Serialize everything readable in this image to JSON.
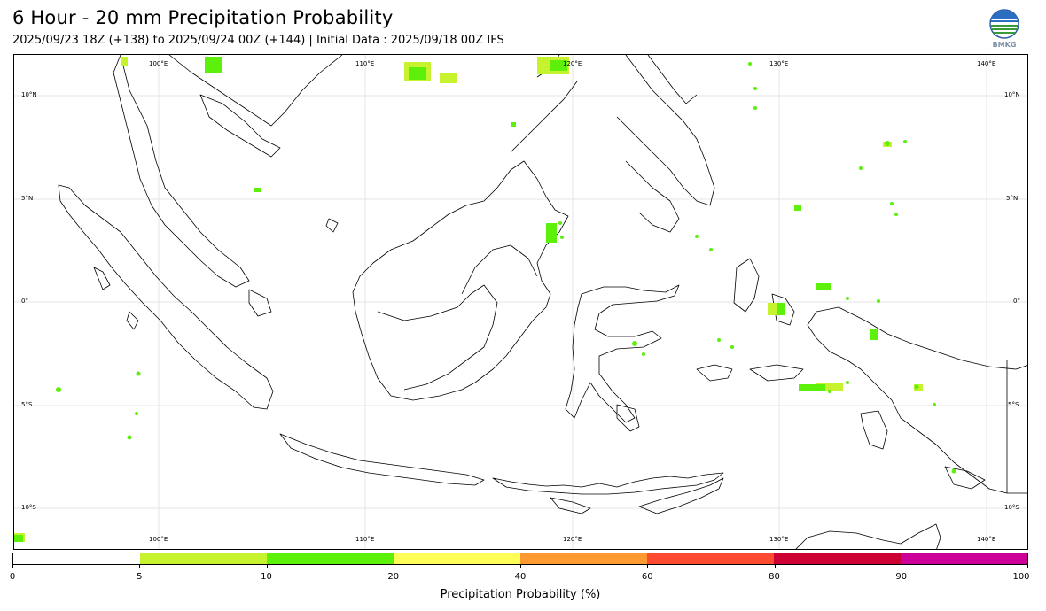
{
  "title": "6 Hour - 20 mm Precipitation Probability",
  "subtitle": "2025/09/23 18Z (+138) to 2025/09/24 00Z (+144) | Initial Data : 2025/09/18 00Z IFS",
  "logo": {
    "text": "BMKG",
    "icon": "bmkg-logo"
  },
  "map": {
    "lon_ticks": [
      "100°E",
      "110°E",
      "120°E",
      "130°E",
      "140°E"
    ],
    "lat_ticks": [
      "10°N",
      "5°N",
      "0°",
      "5°S",
      "10°S"
    ],
    "lon_range": [
      93.5,
      142.5
    ],
    "lat_range": [
      -12,
      12
    ],
    "grid": true
  },
  "colorbar": {
    "title": "Precipitation Probability (%)",
    "ticks": [
      "0",
      "5",
      "10",
      "20",
      "40",
      "60",
      "80",
      "90",
      "100"
    ],
    "colors": [
      "#ffffff",
      "#c6f22e",
      "#5cf00a",
      "#ffff58",
      "#ff9a32",
      "#ff4a32",
      "#cc0033",
      "#cc0099"
    ]
  }
}
